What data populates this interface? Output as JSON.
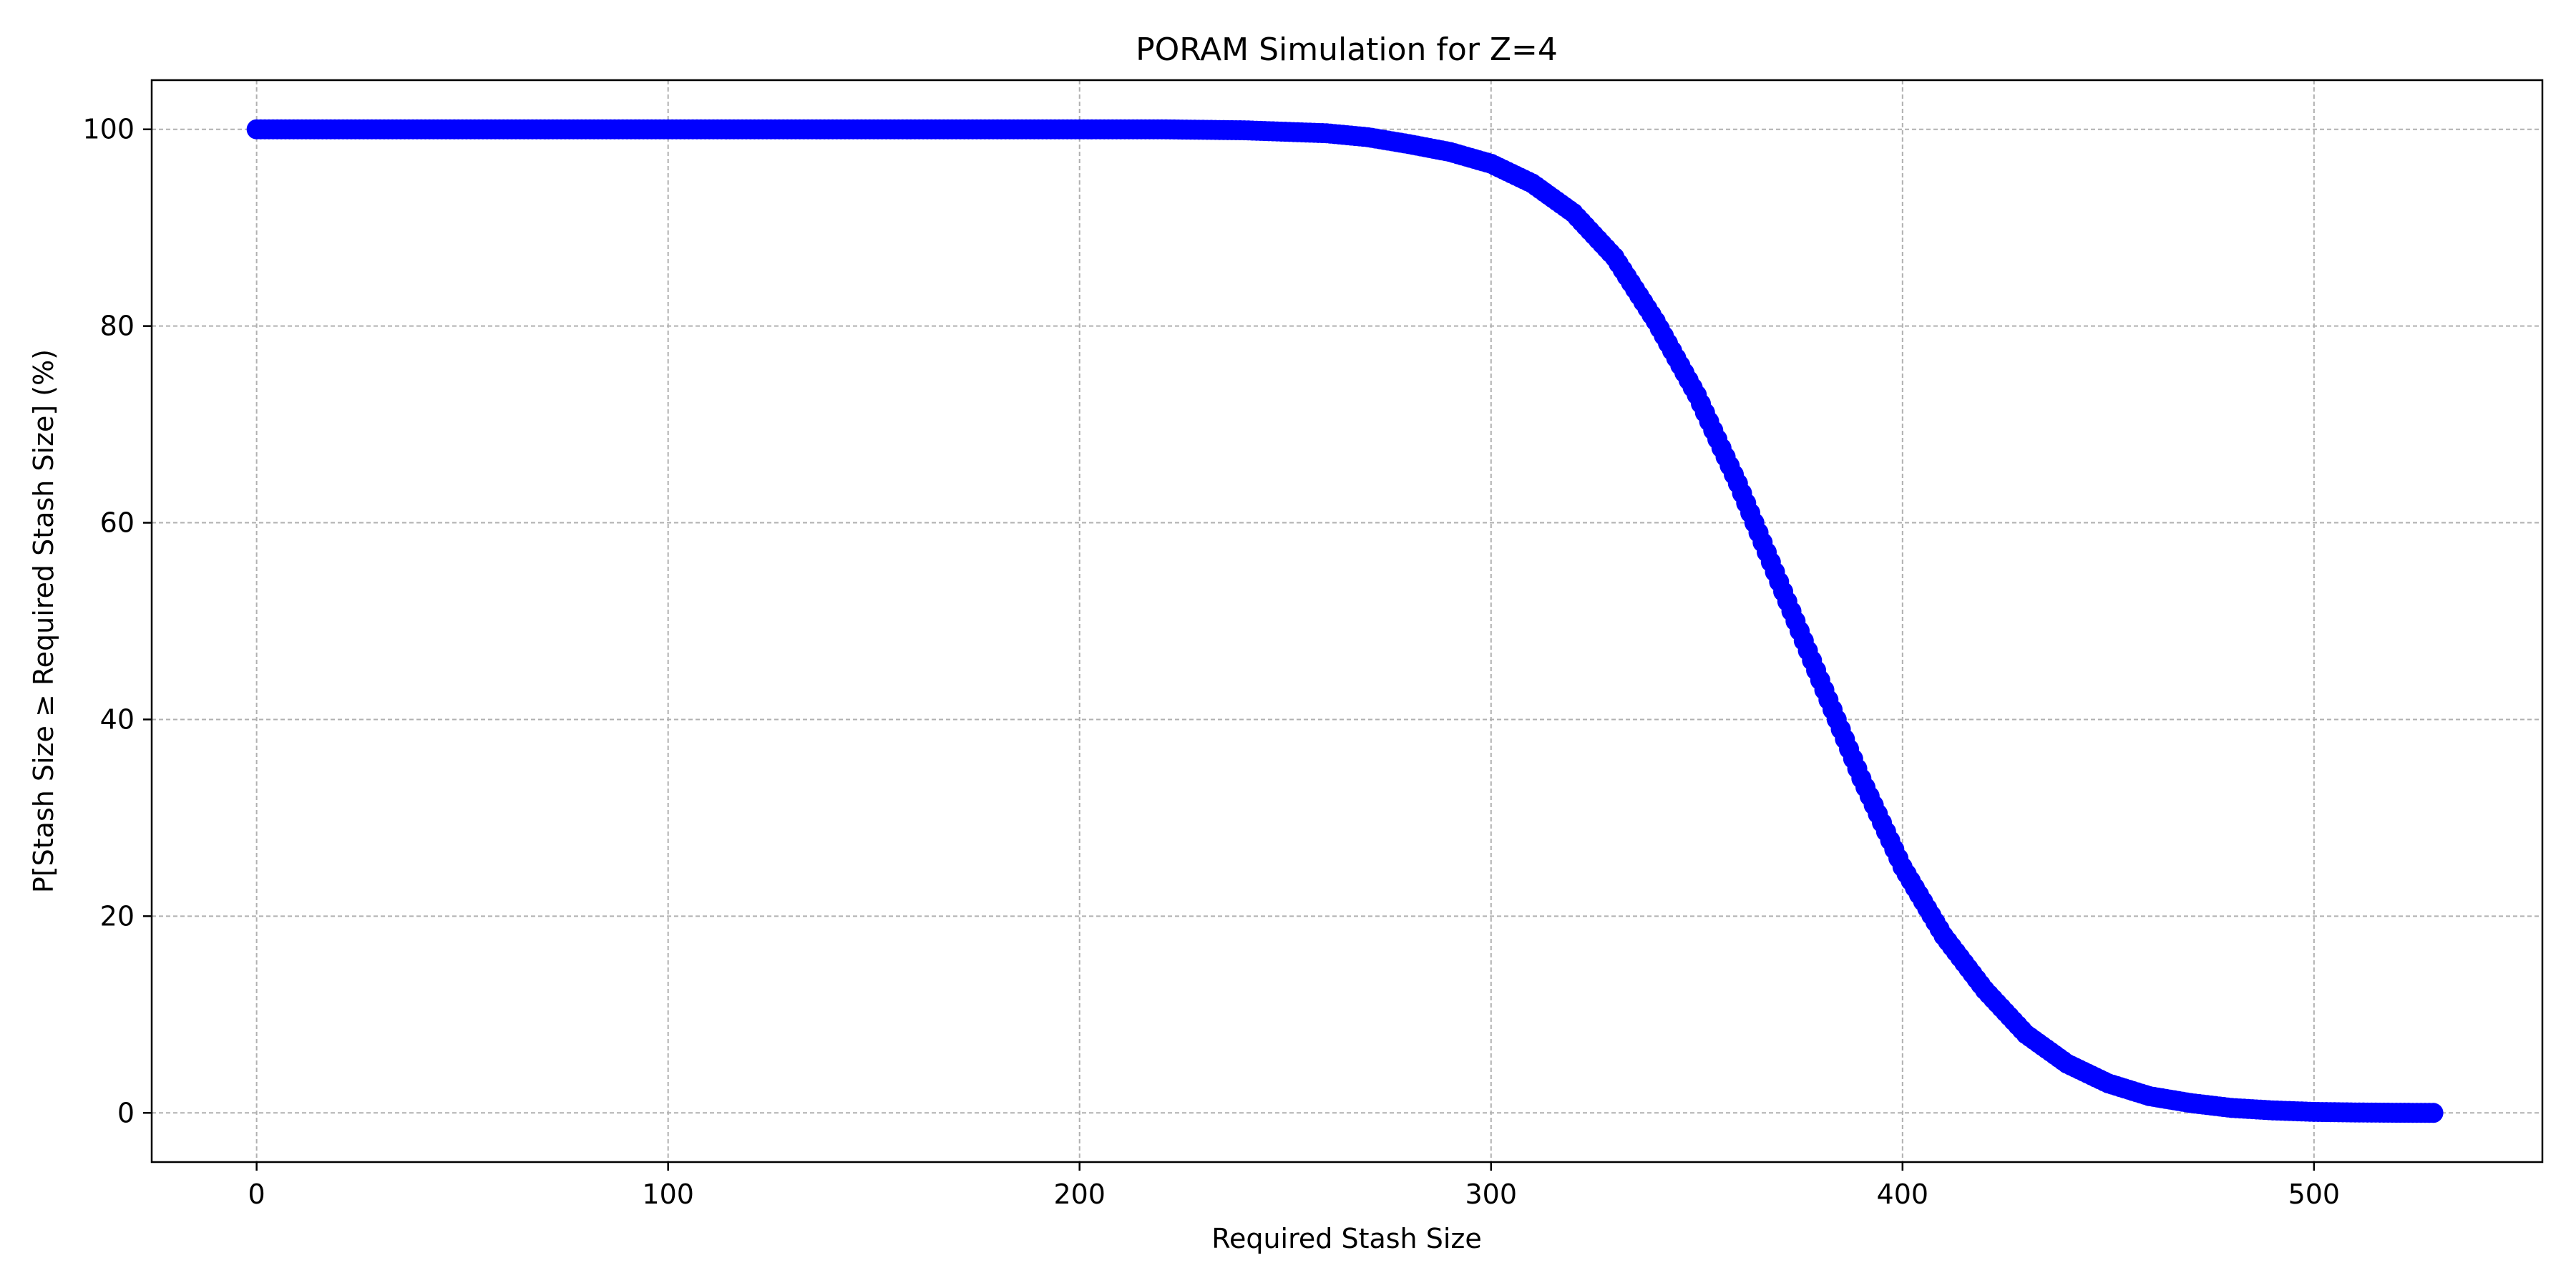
{
  "chart_data": {
    "type": "scatter",
    "title": "PORAM Simulation for Z=4",
    "xlabel": "Required Stash Size",
    "ylabel": "P[Stash Size ≥ Required Stash Size] (%)",
    "xlim": [
      -25.5,
      555.5
    ],
    "ylim": [
      -5,
      105
    ],
    "xticks": [
      0,
      100,
      200,
      300,
      400,
      500
    ],
    "yticks": [
      0,
      20,
      40,
      60,
      80,
      100
    ],
    "x_range": [
      0,
      529
    ],
    "grid": true,
    "marker_color": "#0000ff",
    "points": [
      [
        0,
        100
      ],
      [
        100,
        100
      ],
      [
        200,
        100
      ],
      [
        220,
        100
      ],
      [
        240,
        99.9
      ],
      [
        260,
        99.6
      ],
      [
        270,
        99.2
      ],
      [
        280,
        98.5
      ],
      [
        290,
        97.7
      ],
      [
        300,
        96.5
      ],
      [
        310,
        94.5
      ],
      [
        320,
        91.5
      ],
      [
        330,
        87
      ],
      [
        340,
        80.5
      ],
      [
        350,
        73
      ],
      [
        360,
        64
      ],
      [
        370,
        54
      ],
      [
        380,
        44
      ],
      [
        390,
        34
      ],
      [
        400,
        25
      ],
      [
        410,
        18
      ],
      [
        420,
        12.5
      ],
      [
        430,
        8
      ],
      [
        440,
        5
      ],
      [
        450,
        3
      ],
      [
        460,
        1.7
      ],
      [
        470,
        1
      ],
      [
        480,
        0.5
      ],
      [
        490,
        0.25
      ],
      [
        500,
        0.1
      ],
      [
        510,
        0.04
      ],
      [
        520,
        0.01
      ],
      [
        529,
        0
      ]
    ]
  }
}
